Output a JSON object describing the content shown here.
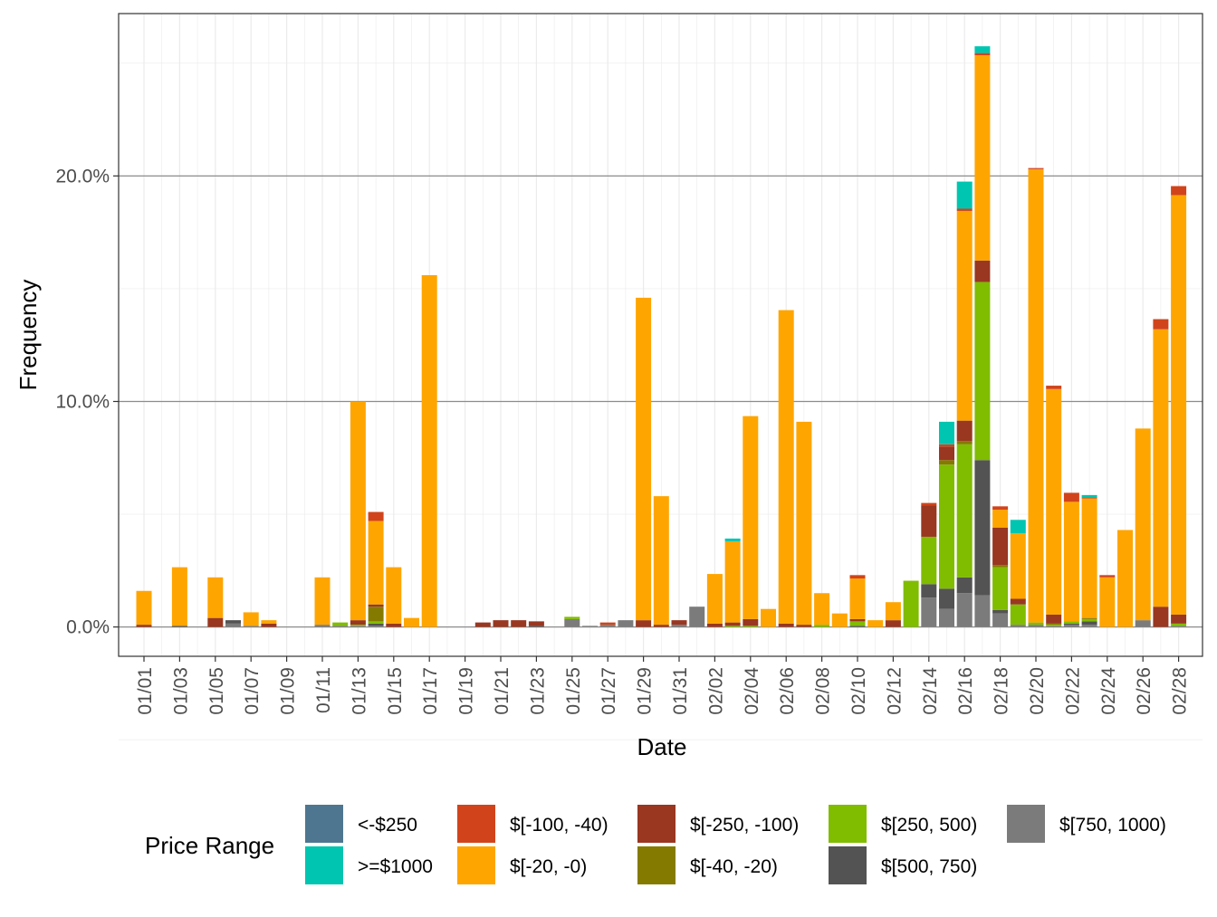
{
  "chart_data": {
    "type": "bar",
    "stacked": true,
    "xlabel": "Date",
    "ylabel": "Frequency",
    "ylim": [
      -1.3,
      27.2
    ],
    "y_ticks": [
      0,
      10,
      20
    ],
    "y_tick_labels": [
      "0.0%",
      "10.0%",
      "20.0%"
    ],
    "grid": true,
    "legend_position": "bottom",
    "legend_title": "Price Range",
    "x_tick_labels": [
      "01/01",
      "01/03",
      "01/05",
      "01/07",
      "01/09",
      "01/11",
      "01/13",
      "01/15",
      "01/17",
      "01/19",
      "01/21",
      "01/23",
      "01/25",
      "01/27",
      "01/29",
      "01/31",
      "02/02",
      "02/04",
      "02/06",
      "02/08",
      "02/10",
      "02/12",
      "02/14",
      "02/16",
      "02/18",
      "02/20",
      "02/22",
      "02/24",
      "02/26",
      "02/28"
    ],
    "categories": [
      "01/01",
      "01/02",
      "01/03",
      "01/04",
      "01/05",
      "01/06",
      "01/07",
      "01/08",
      "01/09",
      "01/10",
      "01/11",
      "01/12",
      "01/13",
      "01/14",
      "01/15",
      "01/16",
      "01/17",
      "01/18",
      "01/19",
      "01/20",
      "01/21",
      "01/22",
      "01/23",
      "01/24",
      "01/25",
      "01/26",
      "01/27",
      "01/28",
      "01/29",
      "01/30",
      "01/31",
      "02/01",
      "02/02",
      "02/03",
      "02/04",
      "02/05",
      "02/06",
      "02/07",
      "02/08",
      "02/09",
      "02/10",
      "02/11",
      "02/12",
      "02/13",
      "02/14",
      "02/15",
      "02/16",
      "02/17",
      "02/18",
      "02/19",
      "02/20",
      "02/21",
      "02/22",
      "02/23",
      "02/24",
      "02/25",
      "02/26",
      "02/27",
      "02/28"
    ],
    "stack_order": [
      ">=$1000",
      "<-$250",
      "$[-100, -40)",
      "$[-20, -0)",
      "$[-250, -100)",
      "$[-40, -20)",
      "$[250, 500)",
      "$[500, 750)",
      "$[750, 1000)"
    ],
    "series": [
      {
        "name": "<-$250",
        "color": "#4E7690",
        "values": [
          0,
          0,
          0,
          0,
          0,
          0,
          0,
          0,
          0,
          0,
          0,
          0,
          0,
          0,
          0,
          0,
          0,
          0,
          0,
          0,
          0,
          0,
          0,
          0,
          0,
          0,
          0,
          0,
          0,
          0,
          0,
          0,
          0,
          0,
          0,
          0,
          0,
          0,
          0,
          0,
          0,
          0,
          0,
          0,
          0,
          0,
          0,
          0,
          0,
          0,
          0,
          0,
          0,
          0,
          0,
          0,
          0,
          0,
          0
        ]
      },
      {
        "name": ">=$1000",
        "color": "#00C5B0",
        "values": [
          0,
          0,
          0,
          0,
          0,
          0,
          0,
          0,
          0,
          0,
          0,
          0,
          0,
          0,
          0,
          0,
          0,
          0,
          0,
          0,
          0,
          0,
          0,
          0,
          0,
          0,
          0,
          0,
          0,
          0,
          0,
          0,
          0,
          0.12,
          0,
          0,
          0,
          0,
          0,
          0,
          0,
          0,
          0,
          0,
          0,
          1,
          1.2,
          0.3,
          0,
          0.6,
          0,
          0,
          0,
          0.1,
          0,
          0,
          0,
          0,
          0
        ]
      },
      {
        "name": "$[-100, -40)",
        "color": "#D1441B",
        "values": [
          0,
          0,
          0,
          0,
          0,
          0,
          0,
          0,
          0,
          0,
          0,
          0,
          0,
          0.4,
          0,
          0,
          0,
          0,
          0,
          0,
          0,
          0,
          0,
          0,
          0,
          0,
          0.1,
          0,
          0,
          0,
          0,
          0,
          0,
          0,
          0,
          0,
          0,
          0,
          0,
          0,
          0.15,
          0,
          0,
          0,
          0.1,
          0.1,
          0.1,
          0.1,
          0.15,
          0,
          0.05,
          0.15,
          0.4,
          0.05,
          0.1,
          0,
          0,
          0.45,
          0.4
        ]
      },
      {
        "name": "$[-20, -0)",
        "color": "#FFA500",
        "values": [
          1.5,
          0,
          2.6,
          0,
          1.8,
          0,
          0.6,
          0.15,
          0,
          0,
          2.1,
          0,
          9.7,
          3.7,
          2.5,
          0.4,
          15.6,
          0,
          0,
          0,
          0,
          0,
          0,
          0,
          0,
          0,
          0,
          0,
          14.3,
          5.7,
          0,
          0,
          2.2,
          3.6,
          9,
          0.8,
          13.9,
          9,
          1.4,
          0.6,
          1.8,
          0.3,
          0.8,
          0,
          0,
          0,
          9.3,
          9.1,
          0.8,
          2.9,
          20.1,
          10,
          5.3,
          5.3,
          2.2,
          4.3,
          8.5,
          12.3,
          18.6
        ]
      },
      {
        "name": "$[-250, -100)",
        "color": "#993721",
        "values": [
          0.1,
          0,
          0,
          0,
          0.4,
          0,
          0,
          0.15,
          0,
          0,
          0,
          0,
          0.2,
          0.1,
          0.15,
          0,
          0,
          0,
          0,
          0.2,
          0.3,
          0.3,
          0.2,
          0,
          0,
          0,
          0,
          0,
          0.3,
          0.1,
          0.2,
          0,
          0.15,
          0.15,
          0.3,
          0,
          0.15,
          0.1,
          0,
          0,
          0.1,
          0,
          0.3,
          0,
          1.4,
          0.6,
          0.9,
          0.95,
          1.65,
          0.25,
          0,
          0.4,
          0,
          0,
          0,
          0,
          0,
          0.9,
          0.4
        ]
      },
      {
        "name": "$[-40, -20)",
        "color": "#857A00",
        "values": [
          0,
          0,
          0,
          0,
          0,
          0,
          0,
          0,
          0,
          0,
          0,
          0,
          0,
          0.65,
          0,
          0,
          0,
          0,
          0,
          0,
          0,
          0,
          0,
          0,
          0,
          0,
          0,
          0,
          0,
          0,
          0,
          0,
          0,
          0,
          0,
          0,
          0,
          0,
          0,
          0,
          0,
          0,
          0,
          0,
          0,
          0.2,
          0.15,
          0,
          0.1,
          0,
          0,
          0.05,
          0,
          0.05,
          0,
          0,
          0,
          0,
          0
        ]
      },
      {
        "name": "$[250, 500)",
        "color": "#80BC00",
        "values": [
          0,
          0,
          0,
          0,
          0,
          0,
          0,
          0,
          0,
          0,
          0,
          0.15,
          0.05,
          0.1,
          0,
          0,
          0,
          0,
          0,
          0,
          0,
          0,
          0,
          0,
          0.1,
          0,
          0,
          0,
          0,
          0,
          0,
          0,
          0,
          0.05,
          0.05,
          0,
          0,
          0,
          0.1,
          0,
          0.2,
          0,
          0,
          2.05,
          2.1,
          5.5,
          5.9,
          7.9,
          1.9,
          0.9,
          0.1,
          0.05,
          0.1,
          0.1,
          0,
          0,
          0,
          0,
          0.1
        ]
      },
      {
        "name": "$[500, 750)",
        "color": "#535353",
        "values": [
          0,
          0,
          0.05,
          0,
          0,
          0.15,
          0,
          0,
          0,
          0,
          0,
          0,
          0,
          0.1,
          0,
          0,
          0,
          0,
          0,
          0,
          0,
          0,
          0.05,
          0,
          0,
          0,
          0,
          0,
          0,
          0,
          0,
          0,
          0,
          0,
          0,
          0,
          0,
          0,
          0,
          0,
          0.05,
          0,
          0,
          0,
          0.6,
          0.9,
          0.7,
          6,
          0.15,
          0,
          0,
          0,
          0.05,
          0.15,
          0,
          0,
          0,
          0,
          0
        ]
      },
      {
        "name": "$[750, 1000)",
        "color": "#7B7B7B",
        "values": [
          0,
          0,
          0,
          0,
          0,
          0.15,
          0.05,
          0,
          0,
          0,
          0.1,
          0.05,
          0.05,
          0.05,
          0,
          0,
          0,
          0,
          0,
          0,
          0,
          0,
          0,
          0,
          0.35,
          0.05,
          0.1,
          0.3,
          0,
          0,
          0.1,
          0.9,
          0,
          0,
          0,
          0,
          0,
          0,
          0,
          0,
          0,
          0,
          0,
          0,
          1.3,
          0.8,
          1.5,
          1.4,
          0.6,
          0.1,
          0.1,
          0.05,
          0.1,
          0.1,
          0,
          0,
          0.3,
          0,
          0.05
        ]
      }
    ]
  }
}
